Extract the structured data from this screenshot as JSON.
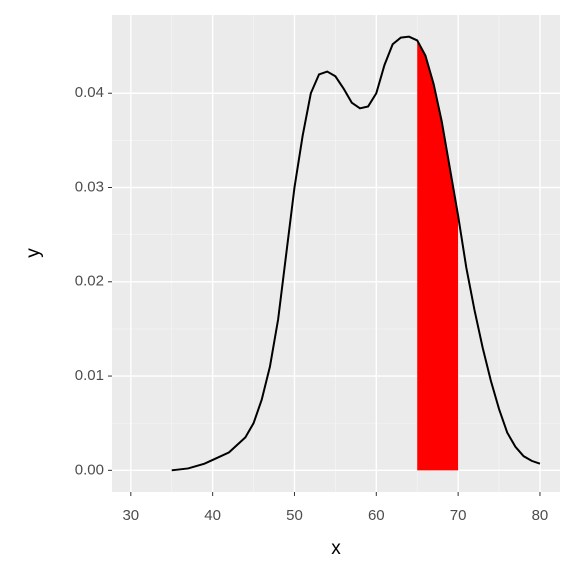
{
  "chart_data": {
    "type": "line",
    "x_label": "x",
    "y_label": "y",
    "xlim": [
      27.7,
      82.45
    ],
    "ylim": [
      -0.0023,
      0.0483
    ],
    "xticks": [
      30,
      40,
      50,
      60,
      70,
      80
    ],
    "yticks": [
      {
        "value": 0,
        "label": "0.00"
      },
      {
        "value": 0.01,
        "label": "0.01"
      },
      {
        "value": 0.02,
        "label": "0.02"
      },
      {
        "value": 0.03,
        "label": "0.03"
      },
      {
        "value": 0.04,
        "label": "0.04"
      }
    ],
    "grid": true,
    "series": [
      {
        "color": "#000000",
        "x": [
          35,
          37,
          39,
          40,
          42,
          44,
          45,
          46,
          47,
          48,
          49,
          50,
          51,
          52,
          53,
          54,
          55,
          56,
          57,
          58,
          59,
          60,
          61,
          62,
          63,
          64,
          65,
          66,
          67,
          68,
          69,
          70,
          71,
          72,
          73,
          74,
          75,
          76,
          77,
          78,
          79,
          80
        ],
        "values": [
          0.0,
          0.0002,
          0.0007,
          0.0011,
          0.0019,
          0.0035,
          0.005,
          0.0075,
          0.011,
          0.016,
          0.023,
          0.03,
          0.0355,
          0.04,
          0.042,
          0.0423,
          0.0418,
          0.0405,
          0.039,
          0.0384,
          0.0386,
          0.04,
          0.043,
          0.0452,
          0.0459,
          0.046,
          0.0456,
          0.044,
          0.041,
          0.037,
          0.032,
          0.027,
          0.0215,
          0.017,
          0.013,
          0.0095,
          0.0065,
          0.004,
          0.0025,
          0.0015,
          0.001,
          0.0007
        ]
      }
    ],
    "shade": {
      "color": "#ff0000",
      "x": [
        65,
        66,
        67,
        68,
        69,
        70
      ],
      "values": [
        0.0456,
        0.044,
        0.041,
        0.037,
        0.032,
        0.027
      ]
    }
  }
}
